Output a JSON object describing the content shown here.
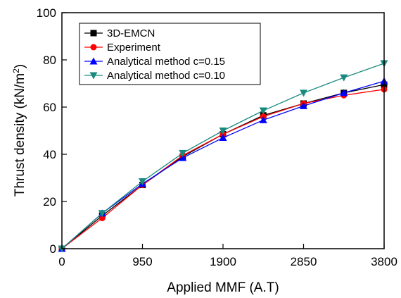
{
  "chart_data": {
    "type": "line",
    "xlabel": "Applied MMF (A.T)",
    "ylabel": "Thrust density (kN/m",
    "ylabel_sup": "2",
    "ylabel_suffix": ")",
    "xlim": [
      0,
      3800
    ],
    "ylim": [
      0,
      100
    ],
    "x_ticks": [
      0,
      950,
      1900,
      2850,
      3800
    ],
    "y_ticks": [
      0,
      20,
      40,
      60,
      80,
      100
    ],
    "grid": false,
    "legend_position": "top-left",
    "x": [
      0,
      475,
      950,
      1425,
      1900,
      2375,
      2850,
      3325,
      3800
    ],
    "series": [
      {
        "name": "3D-EMCN",
        "color": "#000000",
        "marker": "square",
        "values": [
          0,
          14,
          27,
          39,
          48.5,
          56.5,
          61.5,
          66,
          69.5
        ]
      },
      {
        "name": "Experiment",
        "color": "#ff0000",
        "marker": "circle",
        "values": [
          0,
          13,
          27,
          39.5,
          48.5,
          56,
          61.5,
          65,
          67.5
        ]
      },
      {
        "name": "Analytical method c=0.15",
        "color": "#0000ff",
        "marker": "triangle-up",
        "values": [
          0,
          15,
          27.5,
          38.5,
          47,
          54.5,
          60.5,
          66,
          71
        ]
      },
      {
        "name": "Analytical method c=0.10",
        "color": "#1a8a7f",
        "marker": "triangle-down",
        "values": [
          0,
          15,
          28.5,
          40.5,
          50,
          58.5,
          66,
          72.5,
          78.5
        ]
      }
    ]
  }
}
